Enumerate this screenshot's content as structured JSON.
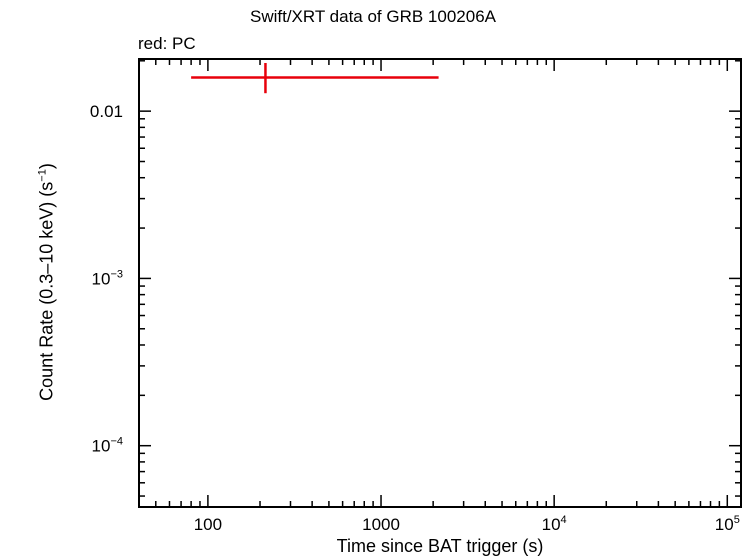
{
  "chart_data": {
    "type": "scatter",
    "title": "Swift/XRT data of GRB 100206A",
    "subtitle": "red: PC",
    "xlabel": "Time since BAT trigger (s)",
    "ylabel": {
      "main": "Count Rate (0.3–10 keV) (s",
      "exp": "−1",
      "close": ")"
    },
    "x_scale": "log",
    "y_scale": "log",
    "xlim": [
      40,
      120000
    ],
    "ylim": [
      4.3e-05,
      0.0205
    ],
    "x_ticks": [
      {
        "value": 100,
        "label": "100",
        "exp": ""
      },
      {
        "value": 1000,
        "label": "1000",
        "exp": ""
      },
      {
        "value": 10000,
        "label": "10",
        "exp": "4"
      },
      {
        "value": 100000,
        "label": "10",
        "exp": "5"
      }
    ],
    "y_ticks": [
      {
        "value": 0.01,
        "label": "0.01",
        "exp": ""
      },
      {
        "value": 0.001,
        "label": "10",
        "exp": "−3"
      },
      {
        "value": 0.0001,
        "label": "10",
        "exp": "−4"
      }
    ],
    "grid": false,
    "series": [
      {
        "color": "#e8000b",
        "points": [
          {
            "x": 215,
            "x_low": 80,
            "x_high": 2150,
            "y": 0.0159,
            "y_low": 0.0128,
            "y_high": 0.0194
          }
        ]
      }
    ]
  }
}
